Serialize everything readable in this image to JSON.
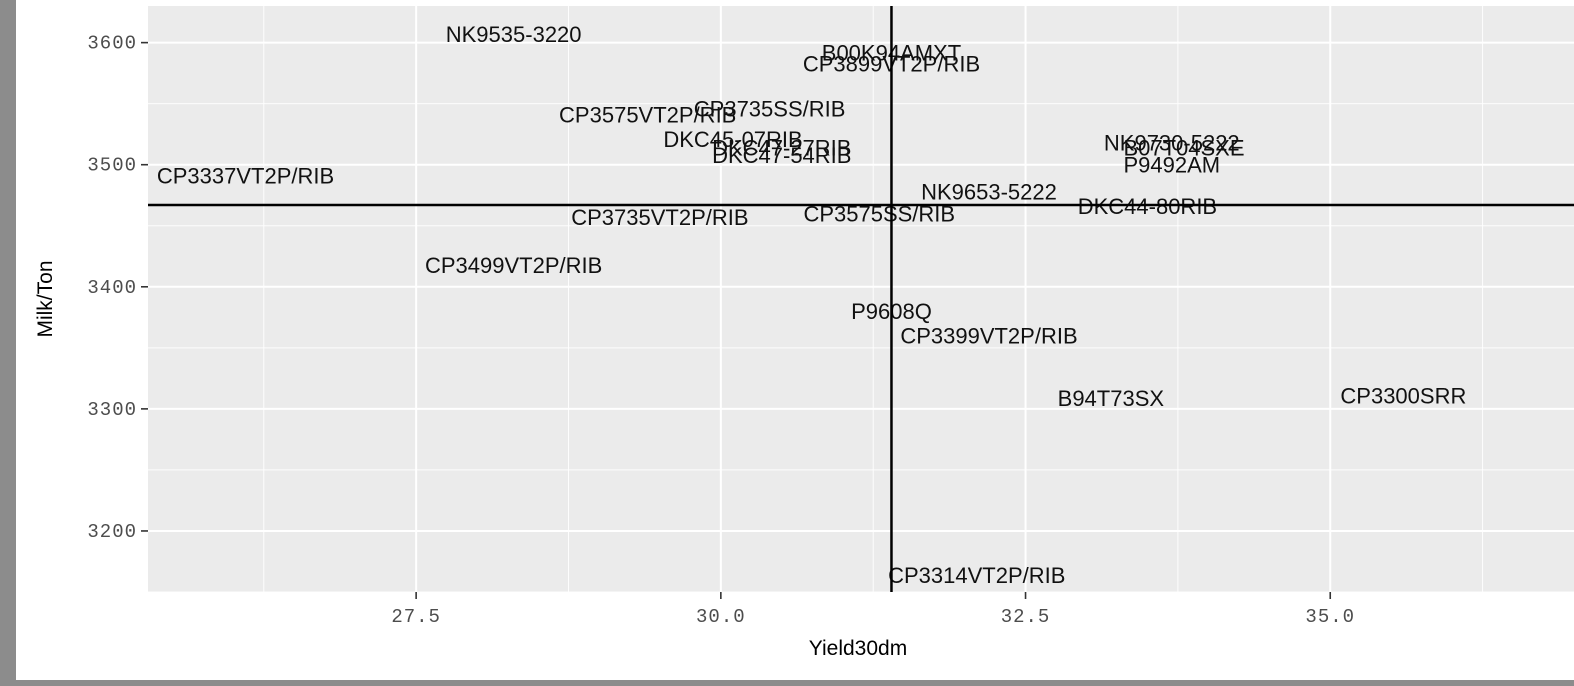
{
  "chart_data": {
    "type": "scatter",
    "title": "",
    "xlabel": "Yield30dm",
    "ylabel": "Milk/Ton",
    "xlim": [
      25.3,
      37.0
    ],
    "ylim": [
      3150,
      3630
    ],
    "x_ticks": [
      27.5,
      30.0,
      32.5,
      35.0
    ],
    "x_tick_labels": [
      "27.5",
      "30.0",
      "32.5",
      "35.0"
    ],
    "y_ticks": [
      3200,
      3300,
      3400,
      3500,
      3600
    ],
    "y_tick_labels": [
      "3200",
      "3300",
      "3400",
      "3500",
      "3600"
    ],
    "grid": true,
    "vline_x": 31.4,
    "hline_y": 3467,
    "points": [
      {
        "label": "NK9535-3220",
        "x": 28.3,
        "y": 3607
      },
      {
        "label": "B00K94AMXT",
        "x": 31.4,
        "y": 3592
      },
      {
        "label": "CP3899VT2P/RIB",
        "x": 31.4,
        "y": 3583
      },
      {
        "label": "CP3735SS/RIB",
        "x": 30.4,
        "y": 3546
      },
      {
        "label": "CP3575VT2P/RIB",
        "x": 29.4,
        "y": 3541
      },
      {
        "label": "DKC45-07RIB",
        "x": 30.1,
        "y": 3521
      },
      {
        "label": "DKC47-27RIB",
        "x": 30.5,
        "y": 3514
      },
      {
        "label": "DKC47-54RIB",
        "x": 30.5,
        "y": 3508
      },
      {
        "label": "NK9730-5222",
        "x": 33.7,
        "y": 3518
      },
      {
        "label": "B07T04SXE",
        "x": 33.8,
        "y": 3514
      },
      {
        "label": "P9492AM",
        "x": 33.7,
        "y": 3500
      },
      {
        "label": "CP3337VT2P/RIB",
        "x": 26.1,
        "y": 3491
      },
      {
        "label": "NK9653-5222",
        "x": 32.2,
        "y": 3478
      },
      {
        "label": "DKC44-80RIB",
        "x": 33.5,
        "y": 3466
      },
      {
        "label": "CP3735VT2P/RIB",
        "x": 29.5,
        "y": 3457
      },
      {
        "label": "CP3575SS/RIB",
        "x": 31.3,
        "y": 3460
      },
      {
        "label": "CP3499VT2P/RIB",
        "x": 28.3,
        "y": 3418
      },
      {
        "label": "P9608Q",
        "x": 31.4,
        "y": 3380
      },
      {
        "label": "CP3399VT2P/RIB",
        "x": 32.2,
        "y": 3360
      },
      {
        "label": "B94T73SX",
        "x": 33.2,
        "y": 3309
      },
      {
        "label": "CP3300SRR",
        "x": 35.6,
        "y": 3311
      },
      {
        "label": "CP3314VT2P/RIB",
        "x": 32.1,
        "y": 3164
      }
    ]
  }
}
